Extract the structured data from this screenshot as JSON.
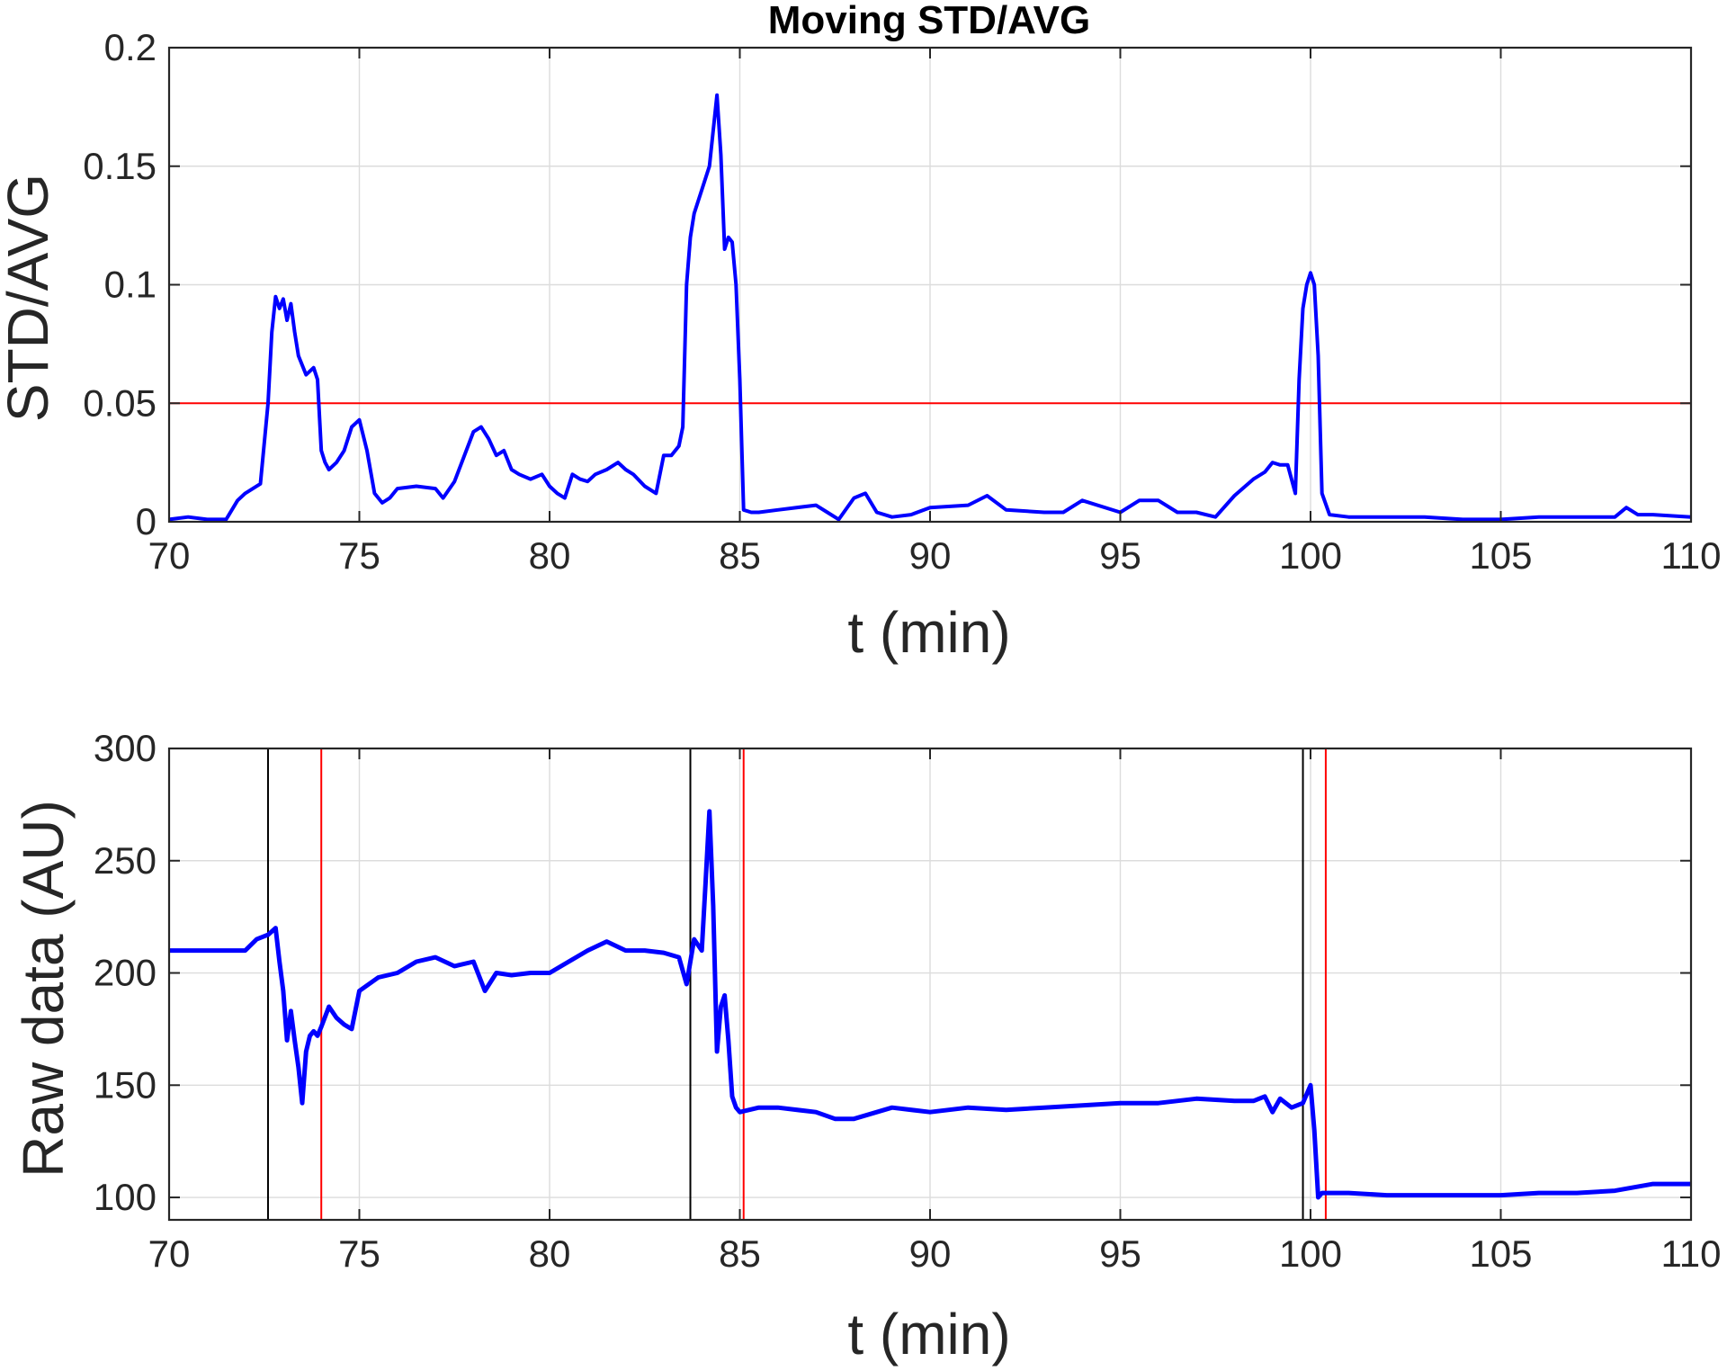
{
  "chart_data": [
    {
      "type": "line",
      "title": "Moving STD/AVG",
      "xlabel": "t (min)",
      "ylabel": "STD/AVG",
      "xlim": [
        70,
        110
      ],
      "ylim": [
        0,
        0.2
      ],
      "xticks": [
        70,
        75,
        80,
        85,
        90,
        95,
        100,
        105,
        110
      ],
      "xtick_labels": [
        "70",
        "75",
        "80",
        "85",
        "90",
        "95",
        "100",
        "105",
        "110"
      ],
      "yticks": [
        0,
        0.05,
        0.1,
        0.15,
        0.2
      ],
      "ytick_labels": [
        "0",
        "0.05",
        "0.1",
        "0.15",
        "0.2"
      ],
      "grid": true,
      "threshold": {
        "y": 0.05,
        "color": "#ff0000"
      },
      "series": [
        {
          "color": "#0000ff",
          "x": [
            70,
            70.5,
            71,
            71.5,
            71.8,
            72,
            72.4,
            72.6,
            72.7,
            72.8,
            72.9,
            73.0,
            73.1,
            73.2,
            73.3,
            73.4,
            73.6,
            73.8,
            73.9,
            74.0,
            74.1,
            74.2,
            74.4,
            74.6,
            74.8,
            75.0,
            75.2,
            75.4,
            75.6,
            75.8,
            76,
            76.5,
            77,
            77.2,
            77.5,
            78,
            78.2,
            78.4,
            78.6,
            78.8,
            79,
            79.2,
            79.5,
            79.8,
            80.0,
            80.2,
            80.4,
            80.6,
            80.8,
            81.0,
            81.2,
            81.5,
            81.8,
            82.0,
            82.2,
            82.5,
            82.8,
            83.0,
            83.2,
            83.4,
            83.5,
            83.6,
            83.7,
            83.8,
            84.0,
            84.2,
            84.4,
            84.5,
            84.6,
            84.7,
            84.8,
            84.9,
            85.0,
            85.1,
            85.3,
            85.5,
            86,
            87,
            87.3,
            87.6,
            88.0,
            88.3,
            88.6,
            89,
            89.5,
            90,
            91,
            91.5,
            92,
            93,
            93.5,
            94,
            95,
            95.5,
            96,
            96.5,
            97,
            97.5,
            98,
            98.5,
            98.8,
            99.0,
            99.2,
            99.4,
            99.6,
            99.7,
            99.8,
            99.9,
            100.0,
            100.1,
            100.2,
            100.3,
            100.5,
            101,
            102,
            103,
            104,
            105,
            106,
            107,
            108,
            108.3,
            108.6,
            109,
            110
          ],
          "y": [
            0.001,
            0.002,
            0.001,
            0.001,
            0.009,
            0.012,
            0.016,
            0.05,
            0.08,
            0.095,
            0.09,
            0.094,
            0.085,
            0.092,
            0.08,
            0.07,
            0.062,
            0.065,
            0.06,
            0.03,
            0.025,
            0.022,
            0.025,
            0.03,
            0.04,
            0.043,
            0.03,
            0.012,
            0.008,
            0.01,
            0.014,
            0.015,
            0.014,
            0.01,
            0.017,
            0.038,
            0.04,
            0.035,
            0.028,
            0.03,
            0.022,
            0.02,
            0.018,
            0.02,
            0.015,
            0.012,
            0.01,
            0.02,
            0.018,
            0.017,
            0.02,
            0.022,
            0.025,
            0.022,
            0.02,
            0.015,
            0.012,
            0.028,
            0.028,
            0.032,
            0.04,
            0.1,
            0.12,
            0.13,
            0.14,
            0.15,
            0.18,
            0.155,
            0.115,
            0.12,
            0.118,
            0.1,
            0.06,
            0.005,
            0.004,
            0.004,
            0.005,
            0.007,
            0.004,
            0.001,
            0.01,
            0.012,
            0.004,
            0.002,
            0.003,
            0.006,
            0.007,
            0.011,
            0.005,
            0.004,
            0.004,
            0.009,
            0.004,
            0.009,
            0.009,
            0.004,
            0.004,
            0.002,
            0.011,
            0.018,
            0.021,
            0.025,
            0.024,
            0.024,
            0.012,
            0.06,
            0.09,
            0.1,
            0.105,
            0.1,
            0.07,
            0.012,
            0.003,
            0.002,
            0.002,
            0.002,
            0.001,
            0.001,
            0.002,
            0.002,
            0.002,
            0.006,
            0.003,
            0.003,
            0.002
          ]
        }
      ]
    },
    {
      "type": "line",
      "xlabel": "t (min)",
      "ylabel": "Raw data (AU)",
      "xlim": [
        70,
        110
      ],
      "ylim": [
        90,
        300
      ],
      "xticks": [
        70,
        75,
        80,
        85,
        90,
        95,
        100,
        105,
        110
      ],
      "xtick_labels": [
        "70",
        "75",
        "80",
        "85",
        "90",
        "95",
        "100",
        "105",
        "110"
      ],
      "yticks": [
        100,
        150,
        200,
        250,
        300
      ],
      "ytick_labels": [
        "100",
        "150",
        "200",
        "250",
        "300"
      ],
      "grid": true,
      "vlines": [
        {
          "x": 72.6,
          "color": "#000000"
        },
        {
          "x": 74.0,
          "color": "#ff0000"
        },
        {
          "x": 83.7,
          "color": "#000000"
        },
        {
          "x": 85.1,
          "color": "#ff0000"
        },
        {
          "x": 99.8,
          "color": "#000000"
        },
        {
          "x": 100.4,
          "color": "#ff0000"
        }
      ],
      "series": [
        {
          "color": "#0000ff",
          "x": [
            70,
            71,
            72,
            72.3,
            72.6,
            72.8,
            72.9,
            73.0,
            73.1,
            73.2,
            73.3,
            73.4,
            73.5,
            73.6,
            73.7,
            73.8,
            73.9,
            74.0,
            74.2,
            74.4,
            74.6,
            74.8,
            75.0,
            75.5,
            76,
            76.5,
            77,
            77.5,
            78,
            78.3,
            78.6,
            79,
            79.5,
            80,
            80.5,
            81,
            81.5,
            82,
            82.5,
            83,
            83.4,
            83.6,
            83.8,
            84.0,
            84.1,
            84.2,
            84.3,
            84.4,
            84.5,
            84.6,
            84.7,
            84.8,
            84.9,
            85.0,
            85.5,
            86,
            87,
            87.5,
            88,
            89,
            90,
            91,
            92,
            93,
            94,
            95,
            96,
            97,
            98,
            98.5,
            98.8,
            99.0,
            99.2,
            99.5,
            99.8,
            100.0,
            100.1,
            100.2,
            100.3,
            100.5,
            101,
            102,
            103,
            104,
            105,
            106,
            107,
            108,
            109,
            110
          ],
          "y": [
            210,
            210,
            210,
            215,
            217,
            220,
            205,
            192,
            170,
            183,
            170,
            158,
            142,
            165,
            172,
            174,
            172,
            176,
            185,
            180,
            177,
            175,
            192,
            198,
            200,
            205,
            207,
            203,
            205,
            192,
            200,
            199,
            200,
            200,
            205,
            210,
            214,
            210,
            210,
            209,
            207,
            195,
            215,
            210,
            240,
            272,
            230,
            165,
            185,
            190,
            170,
            145,
            140,
            138,
            140,
            140,
            138,
            135,
            135,
            140,
            138,
            140,
            139,
            140,
            141,
            142,
            142,
            144,
            143,
            143,
            145,
            138,
            144,
            140,
            142,
            150,
            130,
            100,
            102,
            102,
            102,
            101,
            101,
            101,
            101,
            102,
            102,
            103,
            106,
            106
          ]
        }
      ]
    }
  ]
}
